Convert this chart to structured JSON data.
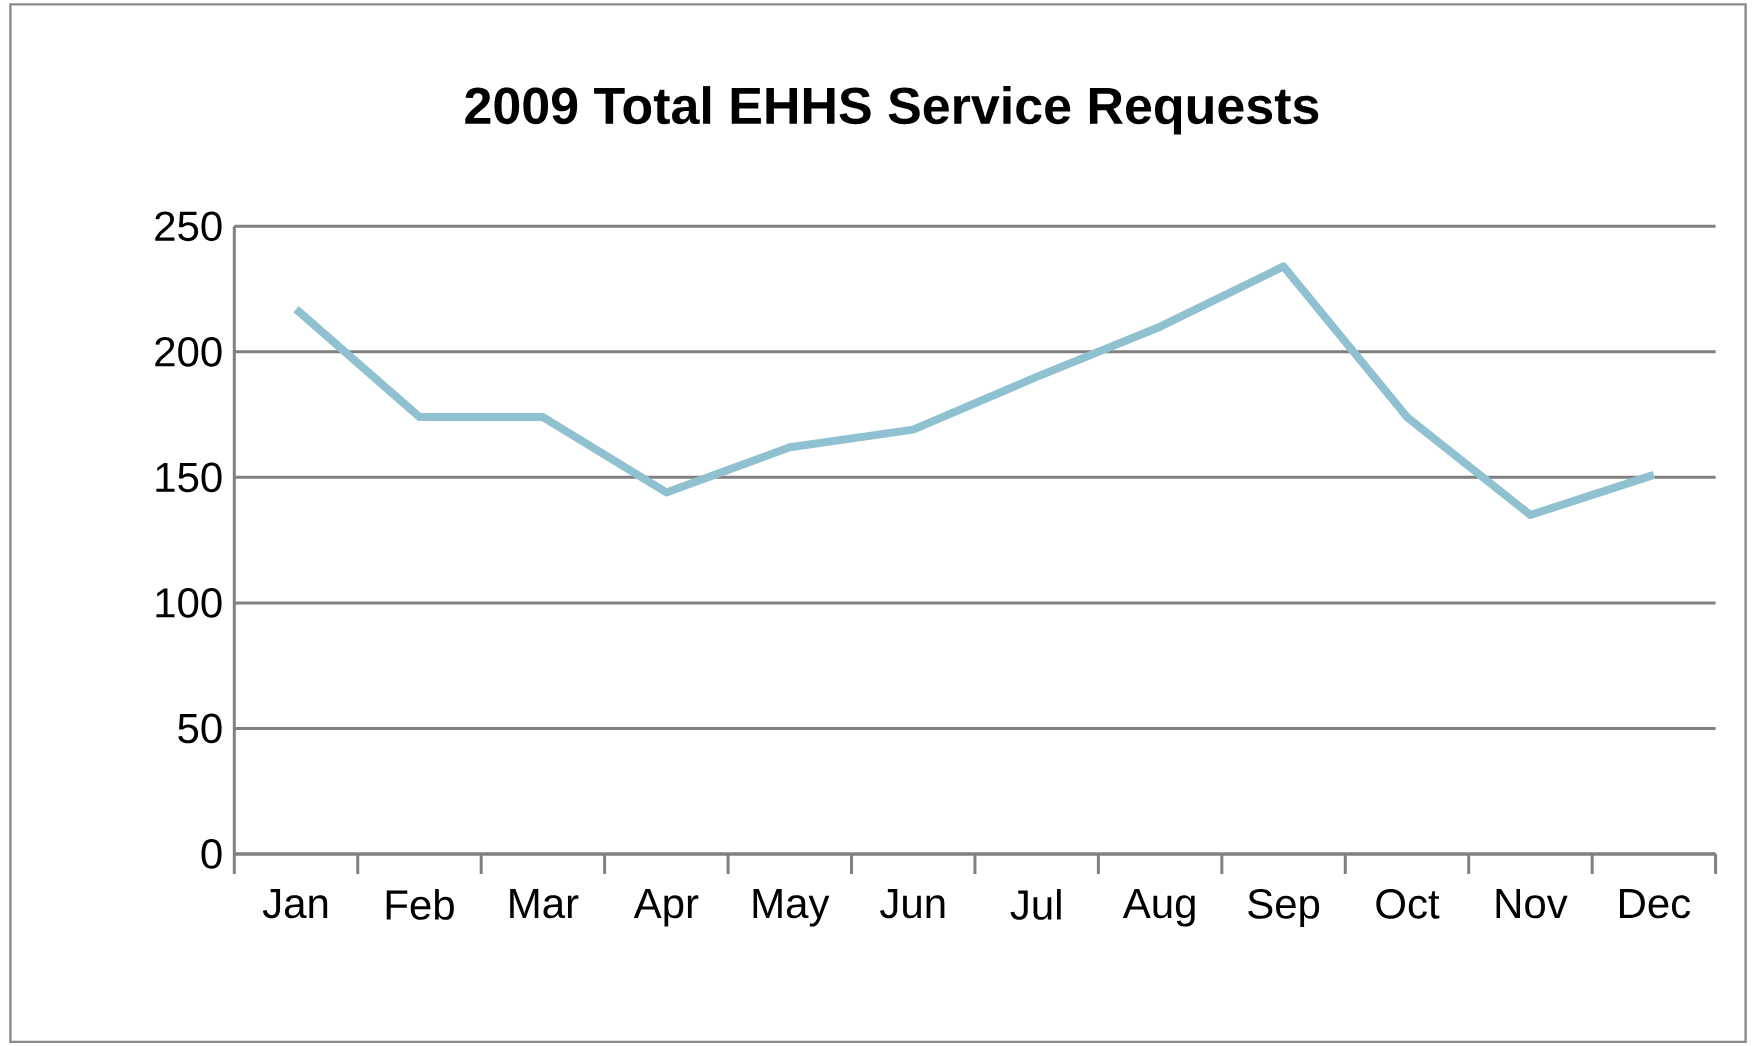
{
  "chart_data": {
    "type": "line",
    "title": "2009 Total EHHS Service  Requests",
    "categories": [
      "Jan",
      "Feb",
      "Mar",
      "Apr",
      "May",
      "Jun",
      "Jul",
      "Aug",
      "Sep",
      "Oct",
      "Nov",
      "Dec"
    ],
    "series": [
      {
        "color": "#8fc1d1",
        "values": [
          217,
          174,
          174,
          144,
          162,
          169,
          190,
          210,
          234,
          174,
          135,
          151
        ]
      }
    ],
    "ylim": [
      0,
      250
    ],
    "yticks": [
      0,
      50,
      100,
      150,
      200,
      250
    ],
    "grid": "y",
    "marker": "none",
    "line_style": "solid"
  }
}
